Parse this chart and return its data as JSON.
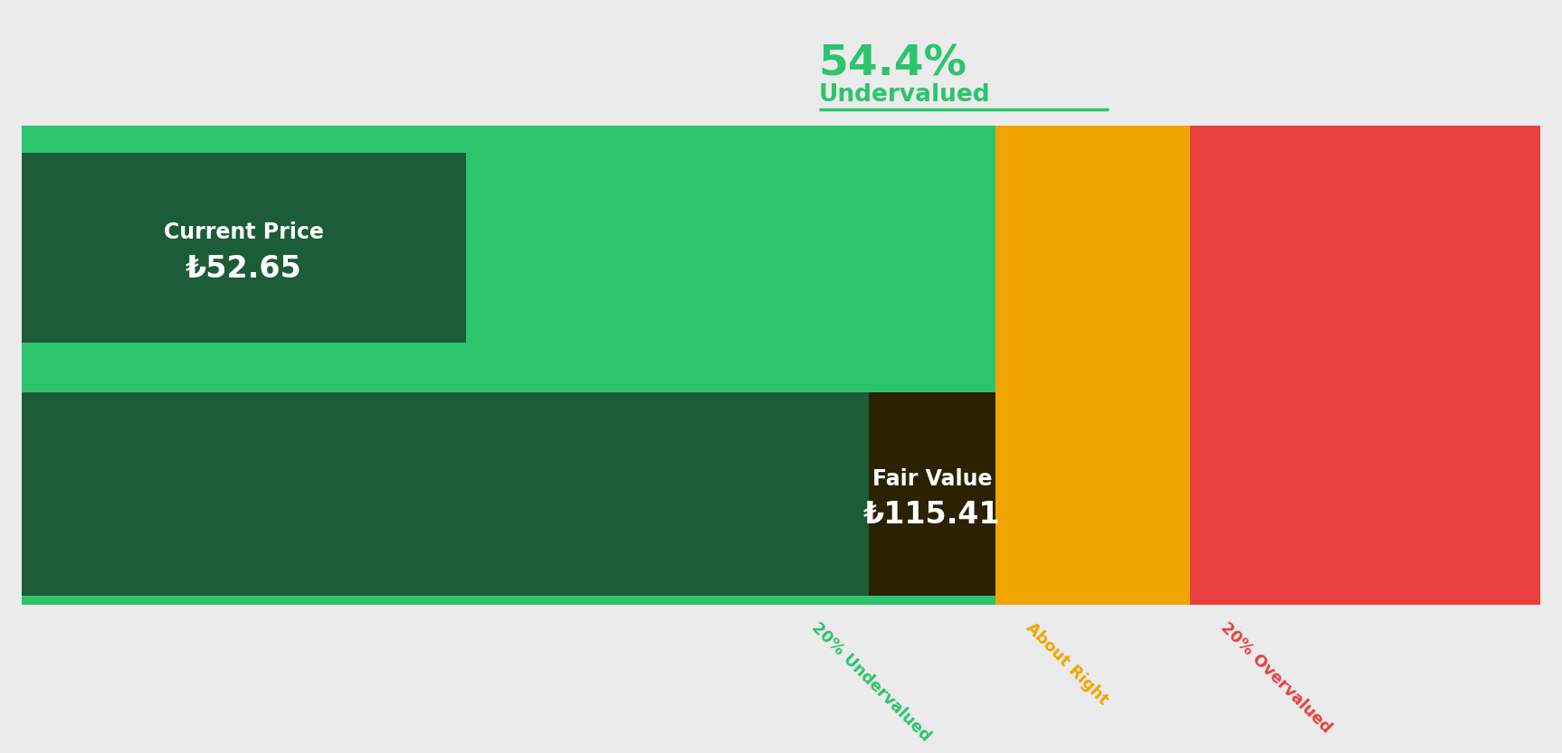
{
  "pct_undervalued": "54.4%",
  "undervalued_label": "Undervalued",
  "current_price_label": "Current Price",
  "current_price_value": "₺52.65",
  "fair_value_label": "Fair Value",
  "fair_value_value": "₺115.41",
  "current_price": 52.65,
  "fair_value": 115.41,
  "max_value": 180.0,
  "label_20pct_under": "20% Undervalued",
  "label_about_right": "About Right",
  "label_20pct_over": "20% Overvalued",
  "bg_color": "#ebebeb",
  "green_bright": "#2dc46e",
  "green_dark": "#1c5c38",
  "orange_color": "#f0a500",
  "red_color": "#e84040",
  "dark_olive": "#2a2200",
  "green_label_color": "#2dc46e",
  "orange_label_color": "#f0a500",
  "red_label_color": "#e84040",
  "title_color": "#2dc46e"
}
